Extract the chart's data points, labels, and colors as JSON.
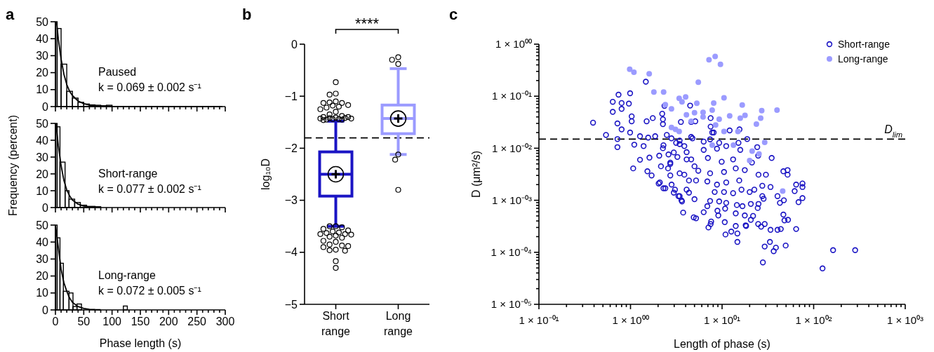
{
  "chart_data": [
    {
      "type": "histogram",
      "title": "a",
      "bins": [
        0,
        3,
        10,
        20,
        30,
        40,
        50,
        60,
        70,
        80,
        90,
        100
      ],
      "values": [
        50,
        46,
        25,
        9,
        5,
        2.5,
        1.5,
        1,
        0.8,
        0.5,
        0.8
      ],
      "color": "#000000",
      "series": [
        {
          "type": "line",
          "color": "#000000",
          "x": [
            2,
            5,
            10,
            15,
            20,
            25,
            30,
            40,
            50,
            60,
            70,
            80,
            100,
            150,
            200,
            250,
            295
          ],
          "values": [
            50,
            40,
            28,
            19,
            13,
            9,
            6.5,
            3.3,
            1.7,
            0.9,
            0.5,
            0.3,
            0.1,
            0,
            0,
            0,
            0
          ]
        }
      ],
      "annotations": [
        "Paused",
        "k = 0.069 ± 0.002 s⁻¹"
      ],
      "xlim": [
        0,
        300
      ],
      "xticks": [
        0,
        {
          "value": 10,
          "label": null
        },
        {
          "value": 20,
          "label": null
        },
        {
          "value": 30,
          "label": null
        },
        {
          "value": 40,
          "label": null
        },
        50,
        {
          "value": 60,
          "label": null
        },
        {
          "value": 70,
          "label": null
        },
        {
          "value": 80,
          "label": null
        },
        {
          "value": 90,
          "label": null
        },
        100,
        {
          "value": 110,
          "label": null
        },
        {
          "value": 120,
          "label": null
        },
        {
          "value": 130,
          "label": null
        },
        {
          "value": 140,
          "label": null
        },
        150,
        {
          "value": 160,
          "label": null
        },
        {
          "value": 170,
          "label": null
        },
        {
          "value": 180,
          "label": null
        },
        {
          "value": 190,
          "label": null
        },
        200,
        {
          "value": 210,
          "label": null
        },
        {
          "value": 220,
          "label": null
        },
        {
          "value": 230,
          "label": null
        },
        {
          "value": 240,
          "label": null
        },
        250,
        {
          "value": 260,
          "label": null
        },
        {
          "value": 270,
          "label": null
        },
        {
          "value": 280,
          "label": null
        },
        {
          "value": 290,
          "label": null
        },
        300
      ],
      "ylim": [
        0,
        50
      ],
      "yticks": [
        0,
        10,
        20,
        30,
        40,
        50
      ],
      "tick_labels": "y"
    },
    {
      "type": "histogram",
      "bins": [
        0,
        3,
        8,
        17,
        24,
        34,
        44,
        55,
        70,
        80
      ],
      "values": [
        50,
        48,
        27,
        10,
        5,
        3,
        1.4,
        0.7,
        0.5
      ],
      "color": "#000000",
      "series": [
        {
          "type": "line",
          "color": "#000000",
          "x": [
            1,
            5,
            10,
            15,
            20,
            25,
            30,
            40,
            50,
            60,
            70,
            80
          ],
          "values": [
            50,
            37,
            25,
            16,
            10.5,
            7,
            4.5,
            2,
            0.9,
            0.4,
            0.2,
            0.1
          ]
        }
      ],
      "annotations": [
        "Short-range",
        "k = 0.077 ± 0.002 s⁻¹"
      ],
      "ylabel": "Frequency (percent)",
      "xlim": [
        0,
        300
      ],
      "xticks": [
        0,
        {
          "value": 10,
          "label": null
        },
        {
          "value": 20,
          "label": null
        },
        {
          "value": 30,
          "label": null
        },
        {
          "value": 40,
          "label": null
        },
        50,
        {
          "value": 60,
          "label": null
        },
        {
          "value": 70,
          "label": null
        },
        {
          "value": 80,
          "label": null
        },
        {
          "value": 90,
          "label": null
        },
        100,
        {
          "value": 110,
          "label": null
        },
        {
          "value": 120,
          "label": null
        },
        {
          "value": 130,
          "label": null
        },
        {
          "value": 140,
          "label": null
        },
        150,
        {
          "value": 160,
          "label": null
        },
        {
          "value": 170,
          "label": null
        },
        {
          "value": 180,
          "label": null
        },
        {
          "value": 190,
          "label": null
        },
        200,
        {
          "value": 210,
          "label": null
        },
        {
          "value": 220,
          "label": null
        },
        {
          "value": 230,
          "label": null
        },
        {
          "value": 240,
          "label": null
        },
        250,
        {
          "value": 260,
          "label": null
        },
        {
          "value": 270,
          "label": null
        },
        {
          "value": 280,
          "label": null
        },
        {
          "value": 290,
          "label": null
        },
        300
      ],
      "ylim": [
        0,
        50
      ],
      "yticks": [
        0,
        10,
        20,
        30,
        40,
        50
      ],
      "tick_labels": "y"
    },
    {
      "type": "histogram",
      "bins": [
        0,
        3,
        8,
        14,
        24,
        31,
        38,
        46,
        120,
        127
      ],
      "values": [
        50,
        42.5,
        27.5,
        11,
        10,
        2,
        3.5,
        0,
        2.3
      ],
      "color": "#000000",
      "series": [
        {
          "type": "line",
          "color": "#000000",
          "x": [
            0,
            5,
            10,
            15,
            20,
            25,
            30,
            40,
            50,
            60,
            70,
            80
          ],
          "values": [
            50,
            37,
            24,
            16,
            11,
            7,
            4.5,
            2,
            0.9,
            0.4,
            0.2,
            0.1
          ]
        }
      ],
      "annotations": [
        "Long-range",
        "k = 0.072 ± 0.005 s⁻¹"
      ],
      "xlabel": "Phase length (s)",
      "xlim": [
        0,
        300
      ],
      "xticks": [
        0,
        {
          "value": 10,
          "label": null
        },
        {
          "value": 20,
          "label": null
        },
        {
          "value": 30,
          "label": null
        },
        {
          "value": 40,
          "label": null
        },
        50,
        {
          "value": 60,
          "label": null
        },
        {
          "value": 70,
          "label": null
        },
        {
          "value": 80,
          "label": null
        },
        {
          "value": 90,
          "label": null
        },
        100,
        {
          "value": 110,
          "label": null
        },
        {
          "value": 120,
          "label": null
        },
        {
          "value": 130,
          "label": null
        },
        {
          "value": 140,
          "label": null
        },
        150,
        {
          "value": 160,
          "label": null
        },
        {
          "value": 170,
          "label": null
        },
        {
          "value": 180,
          "label": null
        },
        {
          "value": 190,
          "label": null
        },
        200,
        {
          "value": 210,
          "label": null
        },
        {
          "value": 220,
          "label": null
        },
        {
          "value": 230,
          "label": null
        },
        {
          "value": 240,
          "label": null
        },
        250,
        {
          "value": 260,
          "label": null
        },
        {
          "value": 270,
          "label": null
        },
        {
          "value": 280,
          "label": null
        },
        {
          "value": 290,
          "label": null
        },
        300
      ],
      "ylim": [
        0,
        50
      ],
      "yticks": [
        0,
        10,
        20,
        30,
        40,
        50
      ]
    },
    {
      "type": "box",
      "title": "b",
      "categories": [
        "Short range",
        "Long range"
      ],
      "colors": [
        "#1a14c4",
        "#9b9bff"
      ],
      "boxes": [
        {
          "low": -3.5,
          "q1": -2.92,
          "median": -2.5,
          "q3": -2.07,
          "high": -1.48,
          "mean": -2.5,
          "outliers": [
            -0.73,
            -0.95,
            -0.97,
            -1.1,
            -1.12,
            -1.13,
            -1.13,
            -1.17,
            -1.18,
            -1.2,
            -1.22,
            -1.25,
            -1.3,
            -1.35,
            -1.38,
            -1.4,
            -1.4,
            -1.41,
            -1.42,
            -1.42,
            -1.43,
            -1.43,
            -1.44,
            -1.44,
            -1.45,
            -1.45,
            -1.46,
            -3.5,
            -3.5,
            -3.52,
            -3.55,
            -3.58,
            -3.6,
            -3.62,
            -3.63,
            -3.65,
            -3.65,
            -3.66,
            -3.68,
            -3.7,
            -3.72,
            -3.78,
            -3.8,
            -3.85,
            -3.87,
            -3.88,
            -3.9,
            -3.95,
            -3.96,
            -3.97,
            -4.17,
            -4.3
          ]
        },
        {
          "low": -2.12,
          "q1": -1.72,
          "median": -1.43,
          "q3": -1.17,
          "high": -0.47,
          "mean": -1.43,
          "outliers": [
            -0.25,
            -0.38,
            -0.3,
            -2.12,
            -2.22,
            -2.8
          ]
        }
      ],
      "ylabel": "log₁₀D",
      "ylim": [
        -5,
        0
      ],
      "yticks": [
        {
          "value": -5,
          "label": "−5"
        },
        {
          "value": -4,
          "label": "−4"
        },
        {
          "value": -3,
          "label": "−3"
        },
        {
          "value": -2,
          "label": "−2"
        },
        {
          "value": -1,
          "label": "−1"
        },
        0
      ],
      "ref_lines": [
        {
          "axis": "y",
          "value": -1.8,
          "line_style": "dashed",
          "color": "#000000"
        }
      ],
      "annotations": [
        "****"
      ]
    },
    {
      "type": "scatter",
      "title": "c",
      "marker": "circle",
      "legend": "top right",
      "log": "xy",
      "xlabel": "Length of phase (s)",
      "ylabel": "D (μm²/s)",
      "series": [
        {
          "name": "Short-range",
          "color": "#1a14c4",
          "x": [
            0.39,
            0.54,
            0.64,
            0.64,
            0.74,
            0.72,
            0.72,
            0.72,
            0.8,
            0.8,
            0.8,
            0.99,
            0.96,
            0.99,
            1.07,
            1.03,
            1.03,
            1.1,
            1.27,
            1.27,
            1.47,
            1.5,
            1.39,
            1.53,
            1.56,
            1.75,
            1.61,
            1.7,
            1.86,
            2.06,
            2.26,
            2.09,
            2.29,
            2.26,
            2.35,
            2.57,
            2.49,
            2.72,
            2.81,
            2.97,
            2.97,
            3.15,
            3.34,
            3.44,
            3.55,
            3.65,
            3.76,
            3.87,
            4.1,
            4.35,
            4.48,
            4.35,
            4.9,
            4.75,
            5,
            4.6,
            5.1,
            7.5,
            7.5,
            12.1,
            15.5,
            8.1,
            18.8,
            24.2,
            34.8,
            24.8,
            21.2,
            46.7,
            51.9,
            51.9,
            64.4,
            75.5,
            75.5,
            62,
            75.5,
            68.4,
            40.3,
            47.3,
            42.8,
            33.8,
            30.1,
            27.5,
            27.5,
            46.7,
            52.5,
            48,
            64.4,
            49.5,
            38.7,
            36.6,
            33.3,
            29.2,
            27.9,
            33.8,
            40.3,
            43.8,
            26.7,
            24.8,
            29.2,
            20.6,
            18.1,
            14.7,
            14.7,
            12.6,
            10.9,
            14.1,
            10.7,
            7.1,
            7.5,
            7.6,
            5.2,
            9.1,
            6.3,
            6.9,
            8.9,
            10.8,
            14.1,
            17.7,
            21.8,
            18.3,
            20.6,
            24.5,
            25,
            28.4,
            14.5,
            16.7,
            11.1,
            9.3,
            7.4,
            8.3,
            10.5,
            13.2,
            16.3,
            20,
            22.5,
            15.4,
            11.1,
            8.8,
            6.9,
            5.2,
            4.1,
            3.06,
            3.44,
            5,
            3.6,
            2.4,
            2.03,
            2.72,
            3.87,
            5.5,
            7.4,
            10.5,
            14.1,
            17.7,
            25,
            13.2,
            9.9,
            7,
            4.6,
            3.25,
            2.72,
            2.15,
            4.1,
            6.3,
            8.8,
            11.1,
            15.8,
            15.1,
            9.3,
            6.3,
            3.44,
            2.29,
            2.8,
            4.6,
            7.4,
            7.8,
            2.26,
            2.22,
            3.44,
            2.6,
            125,
            163,
            284
          ],
          "values": [
            0.031,
            0.018,
            0.078,
            0.05,
            0.107,
            0.03,
            0.015,
            0.0105,
            0.074,
            0.057,
            0.023,
            0.114,
            0.072,
            0.02,
            0.0041,
            0.041,
            0.033,
            0.0117,
            0.017,
            0.006,
            0.19,
            0.033,
            0.011,
            0.0036,
            0.016,
            0.038,
            0.0066,
            0.003,
            0.017,
            0.0072,
            0.029,
            0.0022,
            0.0017,
            0.01,
            0.065,
            0.0041,
            0.018,
            0.005,
            0.002,
            0.0014,
            0.0083,
            0.0127,
            0.0012,
            0.0033,
            0.032,
            0.00095,
            0.00058,
            0.011,
            0.0061,
            0.0024,
            0.066,
            0.0014,
            0.00047,
            0.0155,
            0.0045,
            0.032,
            0.033,
            0.038,
            0.026,
            0.022,
            0.023,
            0.02,
            0.015,
            0.0105,
            0.0065,
            0.0072,
            0.0053,
            0.0036,
            0.0038,
            0.0031,
            0.002,
            0.0021,
            0.0018,
            0.0015,
            0.0011,
            0.00092,
            0.0012,
            0.001,
            0.00089,
            0.0018,
            0.0031,
            0.0019,
            0.0012,
            0.00053,
            0.00042,
            0.00041,
            0.00028,
            0.000135,
            0.000123,
            0.000105,
            0.000158,
            0.000129,
            6.4e-05,
            0.00027,
            0.00027,
            0.00028,
            0.00031,
            0.00035,
            0.00035,
            0.00042,
            0.00033,
            0.00023,
            0.000158,
            0.00025,
            0.00022,
            0.00032,
            0.00038,
            0.0003,
            0.00035,
            0.00039,
            0.00045,
            0.00051,
            0.00059,
            0.00077,
            0.00063,
            0.00069,
            0.00056,
            0.00051,
            0.0005,
            0.00032,
            0.00085,
            0.00071,
            0.00085,
            0.00107,
            0.00081,
            0.00077,
            0.00089,
            0.00095,
            0.00097,
            0.00144,
            0.00144,
            0.00137,
            0.0016,
            0.00144,
            0.0016,
            0.0024,
            0.0022,
            0.002,
            0.0023,
            0.0024,
            0.0016,
            0.0016,
            0.0012,
            0.00105,
            0.001,
            0.0017,
            0.0021,
            0.003,
            0.0031,
            0.0037,
            0.0033,
            0.0035,
            0.0041,
            0.0038,
            0.0031,
            0.0061,
            0.0055,
            0.0065,
            0.0061,
            0.0068,
            0.0053,
            0.0045,
            0.0084,
            0.0093,
            0.0098,
            0.011,
            0.0093,
            0.0127,
            0.0127,
            0.0134,
            0.012,
            0.0114,
            0.0155,
            0.0165,
            0.0148,
            0.02,
            0.036,
            0.046,
            0.014,
            0.0076,
            4.9e-05,
            0.00011,
            0.00011
          ]
        },
        {
          "name": "Long-range",
          "color": "#9b9bff",
          "x": [
            0.98,
            1.09,
            1.6,
            1.8,
            2.3,
            2.4,
            2.8,
            2.8,
            3.1,
            3.4,
            3.4,
            3.65,
            4.0,
            4.08,
            4.6,
            5.3,
            5.5,
            7.2,
            8.4,
            9.6,
            8.1,
            10.5,
            16.6,
            5.0,
            7.8,
            6.2,
            12.1,
            17.8,
            27.1,
            39.8,
            26.4,
            23.7,
            15.8,
            9.3,
            8.5,
            6.2,
            10.5,
            14.9,
            29.2,
            21.3,
            25.3,
            45.9,
            13.3,
            20,
            7.8
          ],
          "values": [
            0.33,
            0.29,
            0.27,
            0.12,
            0.12,
            0.069,
            0.057,
            0.025,
            0.023,
            0.021,
            0.091,
            0.078,
            0.097,
            0.044,
            0.033,
            0.073,
            0.186,
            0.5,
            0.58,
            0.41,
            0.074,
            0.093,
            0.068,
            0.048,
            0.054,
            0.049,
            0.042,
            0.043,
            0.053,
            0.054,
            0.038,
            0.029,
            0.038,
            0.036,
            0.028,
            0.04,
            0.021,
            0.021,
            0.013,
            0.0088,
            0.0078,
            0.0015,
            0.0115,
            0.0058,
            0.0115
          ]
        }
      ],
      "ref_lines": [
        {
          "axis": "y",
          "value": 0.015,
          "label": "D$_{lim}$",
          "line_style": "dashed",
          "color": "#000000"
        }
      ],
      "xlim": [
        0.1,
        1000
      ],
      "xticks": [
        {
          "value": 0.1,
          "label": "1 × 10⁻⁰¹"
        },
        {
          "value": 0.2,
          "label": null
        },
        {
          "value": 0.3,
          "label": null
        },
        {
          "value": 0.4,
          "label": null
        },
        {
          "value": 0.5,
          "label": null
        },
        {
          "value": 0.6,
          "label": null
        },
        {
          "value": 0.7,
          "label": null
        },
        {
          "value": 0.8,
          "label": null
        },
        {
          "value": 0.9,
          "label": null
        },
        {
          "value": 1,
          "label": "1 × 10⁰⁰"
        },
        {
          "value": 2,
          "label": null
        },
        {
          "value": 3,
          "label": null
        },
        {
          "value": 4,
          "label": null
        },
        {
          "value": 5,
          "label": null
        },
        {
          "value": 6,
          "label": null
        },
        {
          "value": 7,
          "label": null
        },
        {
          "value": 8,
          "label": null
        },
        {
          "value": 9,
          "label": null
        },
        {
          "value": 10,
          "label": "1 × 10⁰¹"
        },
        {
          "value": 20,
          "label": null
        },
        {
          "value": 30,
          "label": null
        },
        {
          "value": 40,
          "label": null
        },
        {
          "value": 50,
          "label": null
        },
        {
          "value": 60,
          "label": null
        },
        {
          "value": 70,
          "label": null
        },
        {
          "value": 80,
          "label": null
        },
        {
          "value": 90,
          "label": null
        },
        {
          "value": 100,
          "label": "1 × 10⁰²"
        },
        {
          "value": 200,
          "label": null
        },
        {
          "value": 300,
          "label": null
        },
        {
          "value": 400,
          "label": null
        },
        {
          "value": 500,
          "label": null
        },
        {
          "value": 600,
          "label": null
        },
        {
          "value": 700,
          "label": null
        },
        {
          "value": 800,
          "label": null
        },
        {
          "value": 900,
          "label": null
        },
        {
          "value": 1000,
          "label": "1 × 10⁰³"
        }
      ],
      "ylim": [
        1e-05,
        1
      ],
      "yticks": [
        {
          "value": 1e-05,
          "label": "1 × 10⁻⁰⁵"
        },
        {
          "value": 2e-05,
          "label": null
        },
        {
          "value": 3e-05,
          "label": null
        },
        {
          "value": 4e-05,
          "label": null
        },
        {
          "value": 5e-05,
          "label": null
        },
        {
          "value": 6e-05,
          "label": null
        },
        {
          "value": 7e-05,
          "label": null
        },
        {
          "value": 8e-05,
          "label": null
        },
        {
          "value": 9e-05,
          "label": null
        },
        {
          "value": 0.0001,
          "label": "1 × 10⁻⁰⁴"
        },
        {
          "value": 0.0002,
          "label": null
        },
        {
          "value": 0.0003,
          "label": null
        },
        {
          "value": 0.0004,
          "label": null
        },
        {
          "value": 0.0005,
          "label": null
        },
        {
          "value": 0.0006,
          "label": null
        },
        {
          "value": 0.0007,
          "label": null
        },
        {
          "value": 0.0008,
          "label": null
        },
        {
          "value": 0.0009,
          "label": null
        },
        {
          "value": 0.001,
          "label": "1 × 10⁻⁰³"
        },
        {
          "value": 0.002,
          "label": null
        },
        {
          "value": 0.003,
          "label": null
        },
        {
          "value": 0.004,
          "label": null
        },
        {
          "value": 0.005,
          "label": null
        },
        {
          "value": 0.006,
          "label": null
        },
        {
          "value": 0.007,
          "label": null
        },
        {
          "value": 0.008,
          "label": null
        },
        {
          "value": 0.009,
          "label": null
        },
        {
          "value": 0.01,
          "label": "1 × 10⁻⁰²"
        },
        {
          "value": 0.02,
          "label": null
        },
        {
          "value": 0.03,
          "label": null
        },
        {
          "value": 0.04,
          "label": null
        },
        {
          "value": 0.05,
          "label": null
        },
        {
          "value": 0.06,
          "label": null
        },
        {
          "value": 0.07,
          "label": null
        },
        {
          "value": 0.08,
          "label": null
        },
        {
          "value": 0.09,
          "label": null
        },
        {
          "value": 0.1,
          "label": "1 × 10⁻⁰¹"
        },
        {
          "value": 0.2,
          "label": null
        },
        {
          "value": 0.3,
          "label": null
        },
        {
          "value": 0.4,
          "label": null
        },
        {
          "value": 0.5,
          "label": null
        },
        {
          "value": 0.6,
          "label": null
        },
        {
          "value": 0.7,
          "label": null
        },
        {
          "value": 0.8,
          "label": null
        },
        {
          "value": 0.9,
          "label": null
        },
        {
          "value": 1,
          "label": "1 × 10⁰⁰"
        }
      ]
    }
  ]
}
